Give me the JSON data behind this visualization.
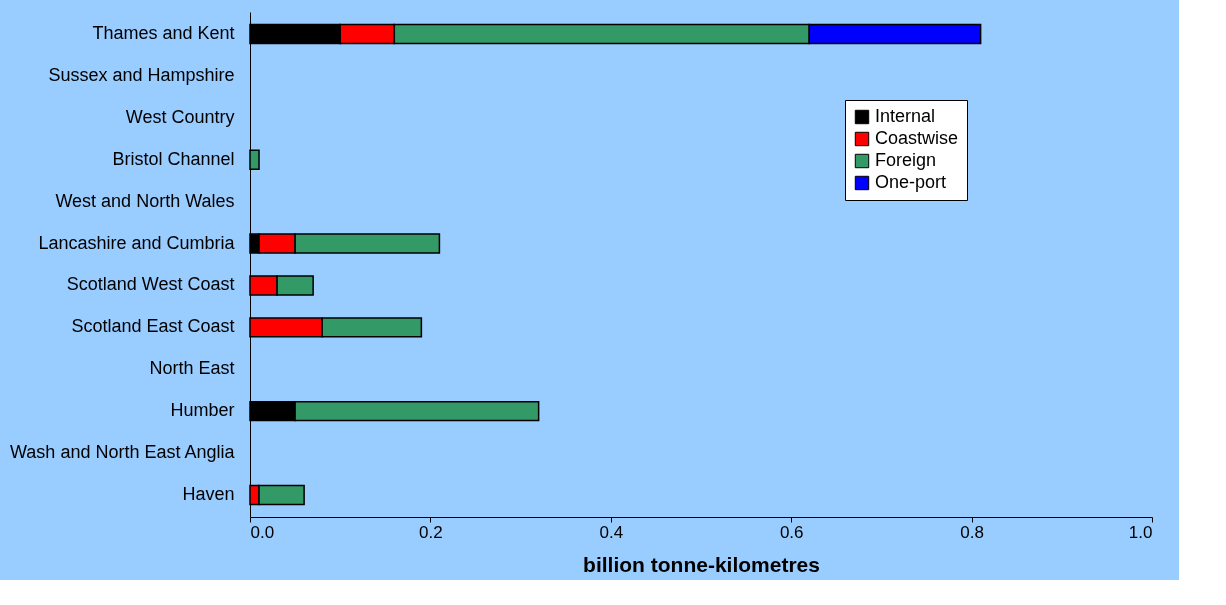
{
  "chart_data": {
    "type": "bar",
    "orientation": "horizontal",
    "stacked": true,
    "xlabel": "billion tonne-kilometres",
    "categories": [
      "Thames and Kent",
      "Sussex and Hampshire",
      "West Country",
      "Bristol Channel",
      "West and North Wales",
      "Lancashire and Cumbria",
      "Scotland West Coast",
      "Scotland East Coast",
      "North East",
      "Humber",
      "Wash and North East Anglia",
      "Haven"
    ],
    "series": [
      {
        "name": "Internal",
        "color": "#000000",
        "values": [
          0.1,
          null,
          null,
          null,
          null,
          0.01,
          null,
          null,
          null,
          0.05,
          null,
          null
        ]
      },
      {
        "name": "Coastwise",
        "color": "#ff0000",
        "values": [
          0.06,
          null,
          null,
          null,
          null,
          0.04,
          0.03,
          0.08,
          null,
          null,
          null,
          0.01
        ]
      },
      {
        "name": "Foreign",
        "color": "#339966",
        "values": [
          0.46,
          null,
          null,
          0.01,
          null,
          0.16,
          0.04,
          0.11,
          null,
          0.27,
          null,
          0.05
        ]
      },
      {
        "name": "One-port",
        "color": "#0000ff",
        "values": [
          0.19,
          null,
          null,
          null,
          null,
          null,
          null,
          null,
          null,
          null,
          null,
          null
        ]
      }
    ],
    "xlim": [
      0,
      1.0
    ],
    "xticks": [
      {
        "value": 0,
        "label": "0.0"
      },
      {
        "value": 0.2,
        "label": "0.2"
      },
      {
        "value": 0.4,
        "label": "0.4"
      },
      {
        "value": 0.6,
        "label": "0.6"
      },
      {
        "value": 0.8,
        "label": "0.8"
      },
      {
        "value": 1.0,
        "label": "1.0"
      }
    ],
    "grid": false,
    "legend": "top right"
  }
}
